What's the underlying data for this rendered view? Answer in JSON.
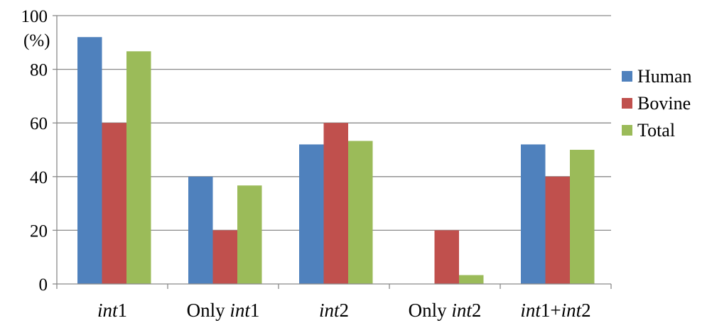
{
  "chart_data": {
    "type": "bar",
    "title": "",
    "xlabel": "",
    "ylabel": "(%)",
    "ylim": [
      0,
      100
    ],
    "yticks": [
      0,
      20,
      40,
      60,
      80,
      100
    ],
    "grid": true,
    "legend_position": "right",
    "categories": [
      {
        "parts": [
          {
            "text": "int",
            "italic": true
          },
          {
            "text": "1",
            "italic": false
          }
        ]
      },
      {
        "parts": [
          {
            "text": "Only ",
            "italic": false
          },
          {
            "text": "int",
            "italic": true
          },
          {
            "text": "1",
            "italic": false
          }
        ]
      },
      {
        "parts": [
          {
            "text": "int",
            "italic": true
          },
          {
            "text": "2",
            "italic": false
          }
        ]
      },
      {
        "parts": [
          {
            "text": "Only ",
            "italic": false
          },
          {
            "text": "int",
            "italic": true
          },
          {
            "text": "2",
            "italic": false
          }
        ]
      },
      {
        "parts": [
          {
            "text": "int",
            "italic": true
          },
          {
            "text": "1+",
            "italic": false
          },
          {
            "text": "int",
            "italic": true
          },
          {
            "text": "2",
            "italic": false
          }
        ]
      }
    ],
    "series": [
      {
        "name": "Human",
        "color": "#4f81bd",
        "values": [
          92,
          40,
          52,
          0,
          52
        ]
      },
      {
        "name": "Bovine",
        "color": "#c0504d",
        "values": [
          60,
          20,
          60,
          20,
          40
        ]
      },
      {
        "name": "Total",
        "color": "#9bbb59",
        "values": [
          86.7,
          36.7,
          53.3,
          3.3,
          50
        ]
      }
    ]
  }
}
